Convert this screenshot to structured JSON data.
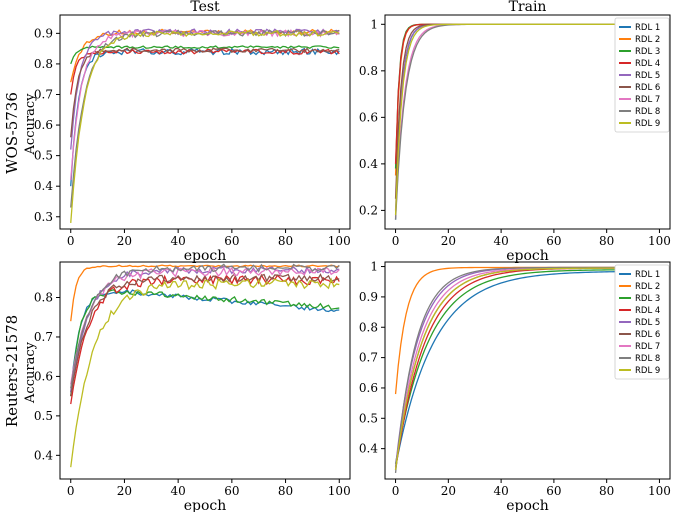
{
  "colors": [
    "#1f77b4",
    "#ff7f0e",
    "#2ca02c",
    "#d62728",
    "#9467bd",
    "#8c564b",
    "#e377c2",
    "#7f7f7f",
    "#bcbd22"
  ],
  "row_labels": [
    "WOS-5736",
    "Reuters-21578"
  ],
  "legend_labels": [
    "RDL 1",
    "RDL 2",
    "RDL 3",
    "RDL 4",
    "RDL 5",
    "RDL 6",
    "RDL 7",
    "RDL 8",
    "RDL 9"
  ],
  "chart_data": [
    {
      "type": "line",
      "title": "Test",
      "xlabel": "epoch",
      "ylabel": "Accuracy",
      "xlim": [
        -4,
        104
      ],
      "ylim": [
        0.26,
        0.96
      ],
      "xticks": [
        0,
        20,
        40,
        60,
        80,
        100
      ],
      "yticks": [
        0.3,
        0.4,
        0.5,
        0.6,
        0.7,
        0.8,
        0.9
      ],
      "x_range": [
        0,
        100
      ],
      "series": [
        {
          "name": "RDL 1",
          "start": 0.4,
          "plateau": 0.84,
          "rate": 0.35,
          "noise": 0.01,
          "drift": 0
        },
        {
          "name": "RDL 2",
          "start": 0.74,
          "plateau": 0.905,
          "rate": 0.25,
          "noise": 0.008,
          "drift": 0
        },
        {
          "name": "RDL 3",
          "start": 0.8,
          "plateau": 0.855,
          "rate": 0.5,
          "noise": 0.004,
          "drift": 0
        },
        {
          "name": "RDL 4",
          "start": 0.7,
          "plateau": 0.84,
          "rate": 0.5,
          "noise": 0.008,
          "drift": 0
        },
        {
          "name": "RDL 5",
          "start": 0.52,
          "plateau": 0.905,
          "rate": 0.3,
          "noise": 0.009,
          "drift": 0
        },
        {
          "name": "RDL 6",
          "start": 0.56,
          "plateau": 0.845,
          "rate": 0.4,
          "noise": 0.007,
          "drift": 0
        },
        {
          "name": "RDL 7",
          "start": 0.42,
          "plateau": 0.9,
          "rate": 0.25,
          "noise": 0.01,
          "drift": 0
        },
        {
          "name": "RDL 8",
          "start": 0.33,
          "plateau": 0.9,
          "rate": 0.2,
          "noise": 0.01,
          "drift": 0
        },
        {
          "name": "RDL 9",
          "start": 0.28,
          "plateau": 0.9,
          "rate": 0.2,
          "noise": 0.009,
          "drift": 0
        }
      ]
    },
    {
      "type": "line",
      "title": "Train",
      "xlabel": "epoch",
      "ylabel": "",
      "xlim": [
        -4,
        104
      ],
      "ylim": [
        0.12,
        1.04
      ],
      "xticks": [
        0,
        20,
        40,
        60,
        80,
        100
      ],
      "yticks": [
        0.2,
        0.4,
        0.6,
        0.8,
        1.0
      ],
      "x_range": [
        0,
        85
      ],
      "series": [
        {
          "name": "RDL 1",
          "start": 0.16,
          "plateau": 1.0,
          "rate": 0.45,
          "noise": 0,
          "drift": 0
        },
        {
          "name": "RDL 2",
          "start": 0.35,
          "plateau": 1.0,
          "rate": 0.7,
          "noise": 0,
          "drift": 0
        },
        {
          "name": "RDL 3",
          "start": 0.38,
          "plateau": 1.0,
          "rate": 0.75,
          "noise": 0,
          "drift": 0
        },
        {
          "name": "RDL 4",
          "start": 0.4,
          "plateau": 1.0,
          "rate": 0.7,
          "noise": 0,
          "drift": 0
        },
        {
          "name": "RDL 5",
          "start": 0.2,
          "plateau": 1.0,
          "rate": 0.45,
          "noise": 0,
          "drift": 0
        },
        {
          "name": "RDL 6",
          "start": 0.25,
          "plateau": 1.0,
          "rate": 0.5,
          "noise": 0,
          "drift": 0
        },
        {
          "name": "RDL 7",
          "start": 0.17,
          "plateau": 1.0,
          "rate": 0.3,
          "noise": 0,
          "drift": 0
        },
        {
          "name": "RDL 8",
          "start": 0.16,
          "plateau": 1.0,
          "rate": 0.28,
          "noise": 0,
          "drift": 0
        },
        {
          "name": "RDL 9",
          "start": 0.18,
          "plateau": 1.0,
          "rate": 0.4,
          "noise": 0,
          "drift": 0
        }
      ]
    },
    {
      "type": "line",
      "title": "",
      "xlabel": "epoch",
      "ylabel": "Accuracy",
      "xlim": [
        -4,
        104
      ],
      "ylim": [
        0.34,
        0.89
      ],
      "xticks": [
        0,
        20,
        40,
        60,
        80,
        100
      ],
      "yticks": [
        0.4,
        0.5,
        0.6,
        0.7,
        0.8
      ],
      "x_range": [
        0,
        100
      ],
      "series": [
        {
          "name": "RDL 1",
          "start": 0.56,
          "plateau": 0.815,
          "rate": 0.3,
          "noise": 0.006,
          "drift": -0.0006
        },
        {
          "name": "RDL 2",
          "start": 0.74,
          "plateau": 0.88,
          "rate": 0.5,
          "noise": 0.002,
          "drift": 0
        },
        {
          "name": "RDL 3",
          "start": 0.55,
          "plateau": 0.815,
          "rate": 0.3,
          "noise": 0.007,
          "drift": -0.0005
        },
        {
          "name": "RDL 4",
          "start": 0.53,
          "plateau": 0.845,
          "rate": 0.15,
          "noise": 0.012,
          "drift": 0
        },
        {
          "name": "RDL 5",
          "start": 0.56,
          "plateau": 0.87,
          "rate": 0.15,
          "noise": 0.009,
          "drift": 0
        },
        {
          "name": "RDL 6",
          "start": 0.55,
          "plateau": 0.85,
          "rate": 0.15,
          "noise": 0.01,
          "drift": 0
        },
        {
          "name": "RDL 7",
          "start": 0.58,
          "plateau": 0.865,
          "rate": 0.15,
          "noise": 0.011,
          "drift": 0
        },
        {
          "name": "RDL 8",
          "start": 0.57,
          "plateau": 0.875,
          "rate": 0.15,
          "noise": 0.009,
          "drift": 0
        },
        {
          "name": "RDL 9",
          "start": 0.37,
          "plateau": 0.835,
          "rate": 0.12,
          "noise": 0.012,
          "drift": 0
        }
      ]
    },
    {
      "type": "line",
      "title": "",
      "xlabel": "epoch",
      "ylabel": "",
      "xlim": [
        -4,
        104
      ],
      "ylim": [
        0.3,
        1.015
      ],
      "xticks": [
        0,
        20,
        40,
        60,
        80,
        100
      ],
      "yticks": [
        0.4,
        0.5,
        0.6,
        0.7,
        0.8,
        0.9,
        1.0
      ],
      "x_range": [
        0,
        100
      ],
      "series": [
        {
          "name": "RDL 1",
          "start": 0.34,
          "plateau": 0.985,
          "rate": 0.07,
          "noise": 0,
          "drift": 0
        },
        {
          "name": "RDL 2",
          "start": 0.58,
          "plateau": 0.997,
          "rate": 0.25,
          "noise": 0,
          "drift": 0
        },
        {
          "name": "RDL 3",
          "start": 0.35,
          "plateau": 0.99,
          "rate": 0.08,
          "noise": 0,
          "drift": 0
        },
        {
          "name": "RDL 4",
          "start": 0.33,
          "plateau": 0.995,
          "rate": 0.09,
          "noise": 0,
          "drift": 0
        },
        {
          "name": "RDL 5",
          "start": 0.34,
          "plateau": 0.997,
          "rate": 0.12,
          "noise": 0,
          "drift": 0
        },
        {
          "name": "RDL 6",
          "start": 0.33,
          "plateau": 0.995,
          "rate": 0.1,
          "noise": 0,
          "drift": 0
        },
        {
          "name": "RDL 7",
          "start": 0.33,
          "plateau": 0.995,
          "rate": 0.11,
          "noise": 0,
          "drift": 0
        },
        {
          "name": "RDL 8",
          "start": 0.32,
          "plateau": 0.997,
          "rate": 0.13,
          "noise": 0,
          "drift": 0
        },
        {
          "name": "RDL 9",
          "start": 0.33,
          "plateau": 0.995,
          "rate": 0.1,
          "noise": 0,
          "drift": 0
        }
      ]
    }
  ]
}
